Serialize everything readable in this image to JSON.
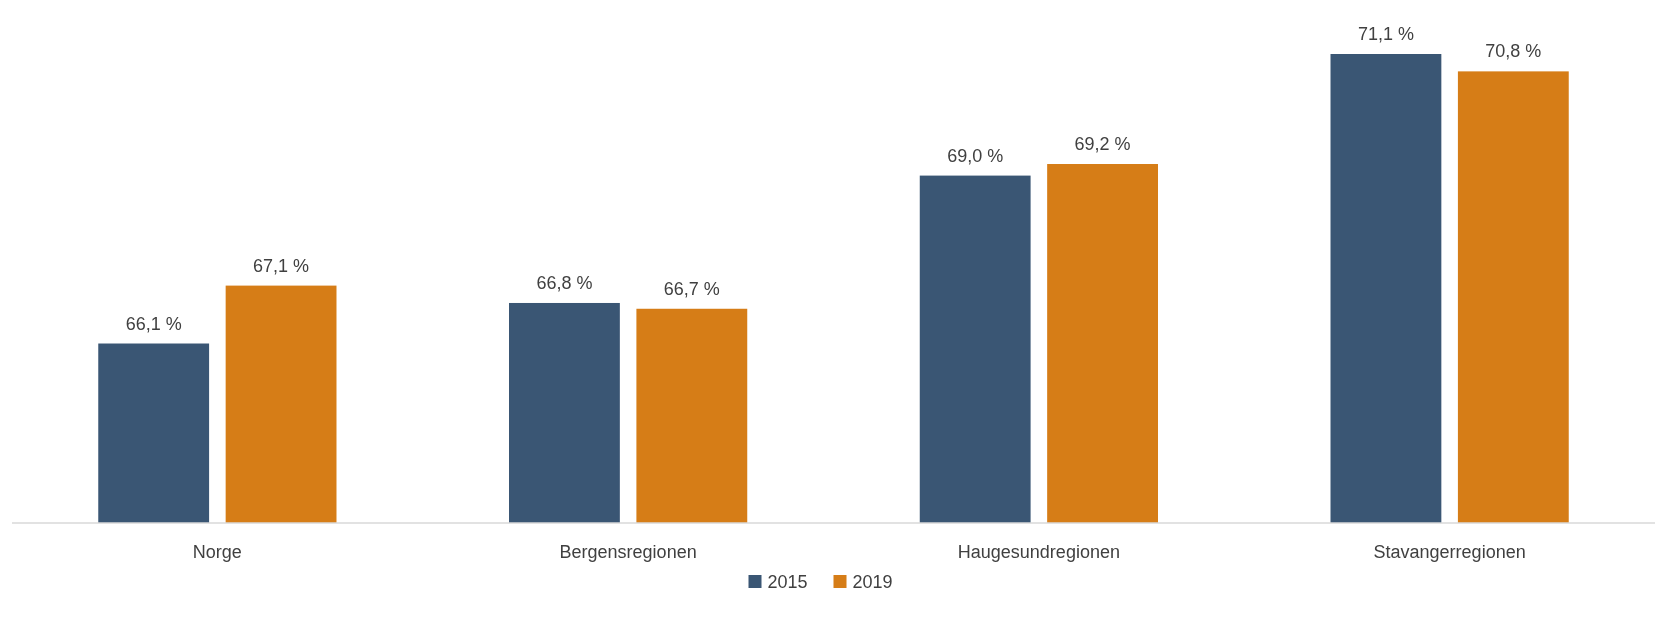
{
  "chart_data": {
    "type": "bar",
    "categories": [
      "Norge",
      "Bergensregionen",
      "Haugesundregionen",
      "Stavangerregionen"
    ],
    "series": [
      {
        "name": "2015",
        "color": "#3a5674",
        "values": [
          66.1,
          66.8,
          69.0,
          71.1
        ],
        "value_labels": [
          "66,1 %",
          "66,8 %",
          "69,0 %",
          "71,1 %"
        ]
      },
      {
        "name": "2019",
        "color": "#d67d17",
        "values": [
          67.1,
          66.7,
          69.2,
          70.8
        ],
        "value_labels": [
          "67,1 %",
          "66,7 %",
          "69,2 %",
          "70,8 %"
        ]
      }
    ],
    "ylim": [
      63,
      71.1
    ],
    "tick_labels": "x",
    "legend": "bottom"
  }
}
